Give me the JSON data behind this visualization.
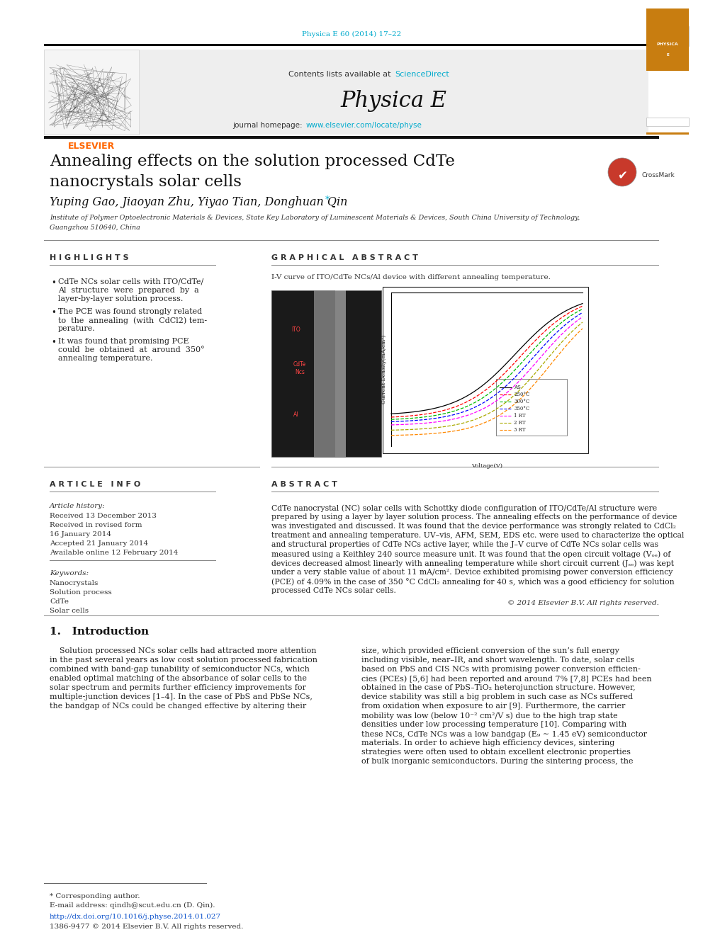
{
  "page_width": 9.92,
  "page_height": 13.23,
  "bg_color": "#ffffff",
  "journal_ref": "Physica E 60 (2014) 17–22",
  "journal_ref_color": "#00aacc",
  "header_sciencedirect": "ScienceDirect",
  "header_sciencedirect_color": "#00aacc",
  "journal_name": "Physica E",
  "homepage_url": "www.elsevier.com/locate/physe",
  "homepage_url_color": "#00aacc",
  "title_line1": "Annealing effects on the solution processed CdTe",
  "title_line2": "nanocrystals solar cells",
  "authors": "Yuping Gao, Jiaoyan Zhu, Yiyao Tian, Donghuan Qin",
  "affil_line1": "Institute of Polymer Optoelectronic Materials & Devices, State Key Laboratory of Luminescent Materials & Devices, South China University of Technology,",
  "affil_line2": "Guangzhou 510640, China",
  "highlights_title": "H I G H L I G H T S",
  "highlight1_lines": [
    "CdTe NCs solar cells with ITO/CdTe/",
    "Al  structure  were  prepared  by  a",
    "layer-by-layer solution process."
  ],
  "highlight2_lines": [
    "The PCE was found strongly related",
    "to  the  annealing  (with  CdCl2) tem-",
    "perature."
  ],
  "highlight3_lines": [
    "It was found that promising PCE",
    "could  be  obtained  at  around  350°",
    "annealing temperature."
  ],
  "graphical_abstract_title": "G R A P H I C A L   A B S T R A C T",
  "graphical_abstract_caption": "I-V curve of ITO/CdTe NCs/Al device with different annealing temperature.",
  "article_info_title": "A R T I C L E   I N F O",
  "article_history_label": "Article history:",
  "article_history": [
    "Received 13 December 2013",
    "Received in revised form",
    "16 January 2014",
    "Accepted 21 January 2014",
    "Available online 12 February 2014"
  ],
  "keywords_label": "Keywords:",
  "keywords": [
    "Nanocrystals",
    "Solution process",
    "CdTe",
    "Solar cells"
  ],
  "abstract_title": "A B S T R A C T",
  "abstract_lines": [
    "CdTe nanocrystal (NC) solar cells with Schottky diode configuration of ITO/CdTe/Al structure were",
    "prepared by using a layer by layer solution process. The annealing effects on the performance of device",
    "was investigated and discussed. It was found that the device performance was strongly related to CdCl₂",
    "treatment and annealing temperature. UV–vis, AFM, SEM, EDS etc. were used to characterize the optical",
    "and structural properties of CdTe NCs active layer, while the J–V curve of CdTe NCs solar cells was",
    "measured using a Keithley 240 source measure unit. It was found that the open circuit voltage (Vₒₑ) of",
    "devices decreased almost linearly with annealing temperature while short circuit current (Jₛₑ) was kept",
    "under a very stable value of about 11 mA/cm². Device exhibited promising power conversion efficiency",
    "(PCE) of 4.09% in the case of 350 °C CdCl₂ annealing for 40 s, which was a good efficiency for solution",
    "processed CdTe NCs solar cells."
  ],
  "copyright": "© 2014 Elsevier B.V. All rights reserved.",
  "intro_title": "1.   Introduction",
  "intro_col1_lines": [
    "    Solution processed NCs solar cells had attracted more attention",
    "in the past several years as low cost solution processed fabrication",
    "combined with band-gap tunability of semiconductor NCs, which",
    "enabled optimal matching of the absorbance of solar cells to the",
    "solar spectrum and permits further efficiency improvements for",
    "multiple-junction devices [1–4]. In the case of PbS and PbSe NCs,",
    "the bandgap of NCs could be changed effective by altering their"
  ],
  "intro_col2_lines": [
    "size, which provided efficient conversion of the sun’s full energy",
    "including visible, near–IR, and short wavelength. To date, solar cells",
    "based on PbS and CIS NCs with promising power conversion efficien-",
    "cies (PCEs) [5,6] had been reported and around 7% [7,8] PCEs had been",
    "obtained in the case of PbS–TiO₂ heterojunction structure. However,",
    "device stability was still a big problem in such case as NCs suffered",
    "from oxidation when exposure to air [9]. Furthermore, the carrier",
    "mobility was low (below 10⁻² cm²/V s) due to the high trap state",
    "densities under low processing temperature [10]. Comparing with",
    "these NCs, CdTe NCs was a low bandgap (E₉ ∼ 1.45 eV) semiconductor",
    "materials. In order to achieve high efficiency devices, sintering",
    "strategies were often used to obtain excellent electronic properties",
    "of bulk inorganic semiconductors. During the sintering process, the"
  ],
  "footnote_author": "* Corresponding author.",
  "footnote_email": "E-mail address: qindh@scut.edu.cn (D. Qin).",
  "footnote_doi": "http://dx.doi.org/10.1016/j.physe.2014.01.027",
  "footnote_issn": "1386-9477 © 2014 Elsevier B.V. All rights reserved.",
  "elsevier_color": "#ff6600"
}
